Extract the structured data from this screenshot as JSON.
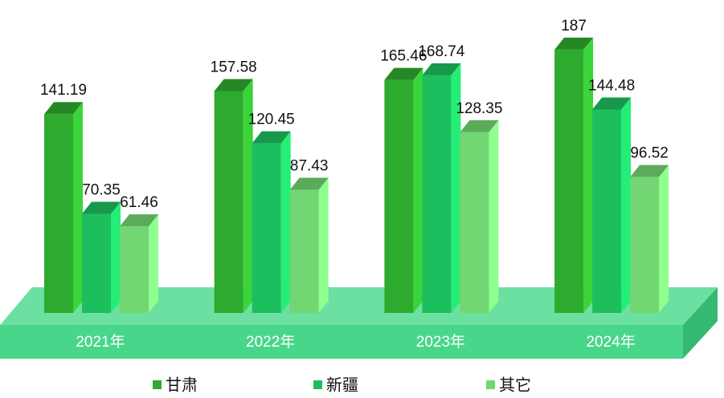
{
  "chart_data": {
    "type": "bar3d",
    "categories": [
      "2021年",
      "2022年",
      "2023年",
      "2024年"
    ],
    "series": [
      {
        "name": "甘肃",
        "color": "#2eaa2e",
        "values": [
          141.19,
          157.58,
          165.46,
          187
        ]
      },
      {
        "name": "新疆",
        "color": "#1dbe5e",
        "values": [
          70.35,
          120.45,
          168.74,
          144.48
        ]
      },
      {
        "name": "其它",
        "color": "#72d672",
        "values": [
          61.46,
          87.43,
          128.35,
          96.52
        ]
      }
    ],
    "ylim": [
      0,
      200
    ]
  }
}
